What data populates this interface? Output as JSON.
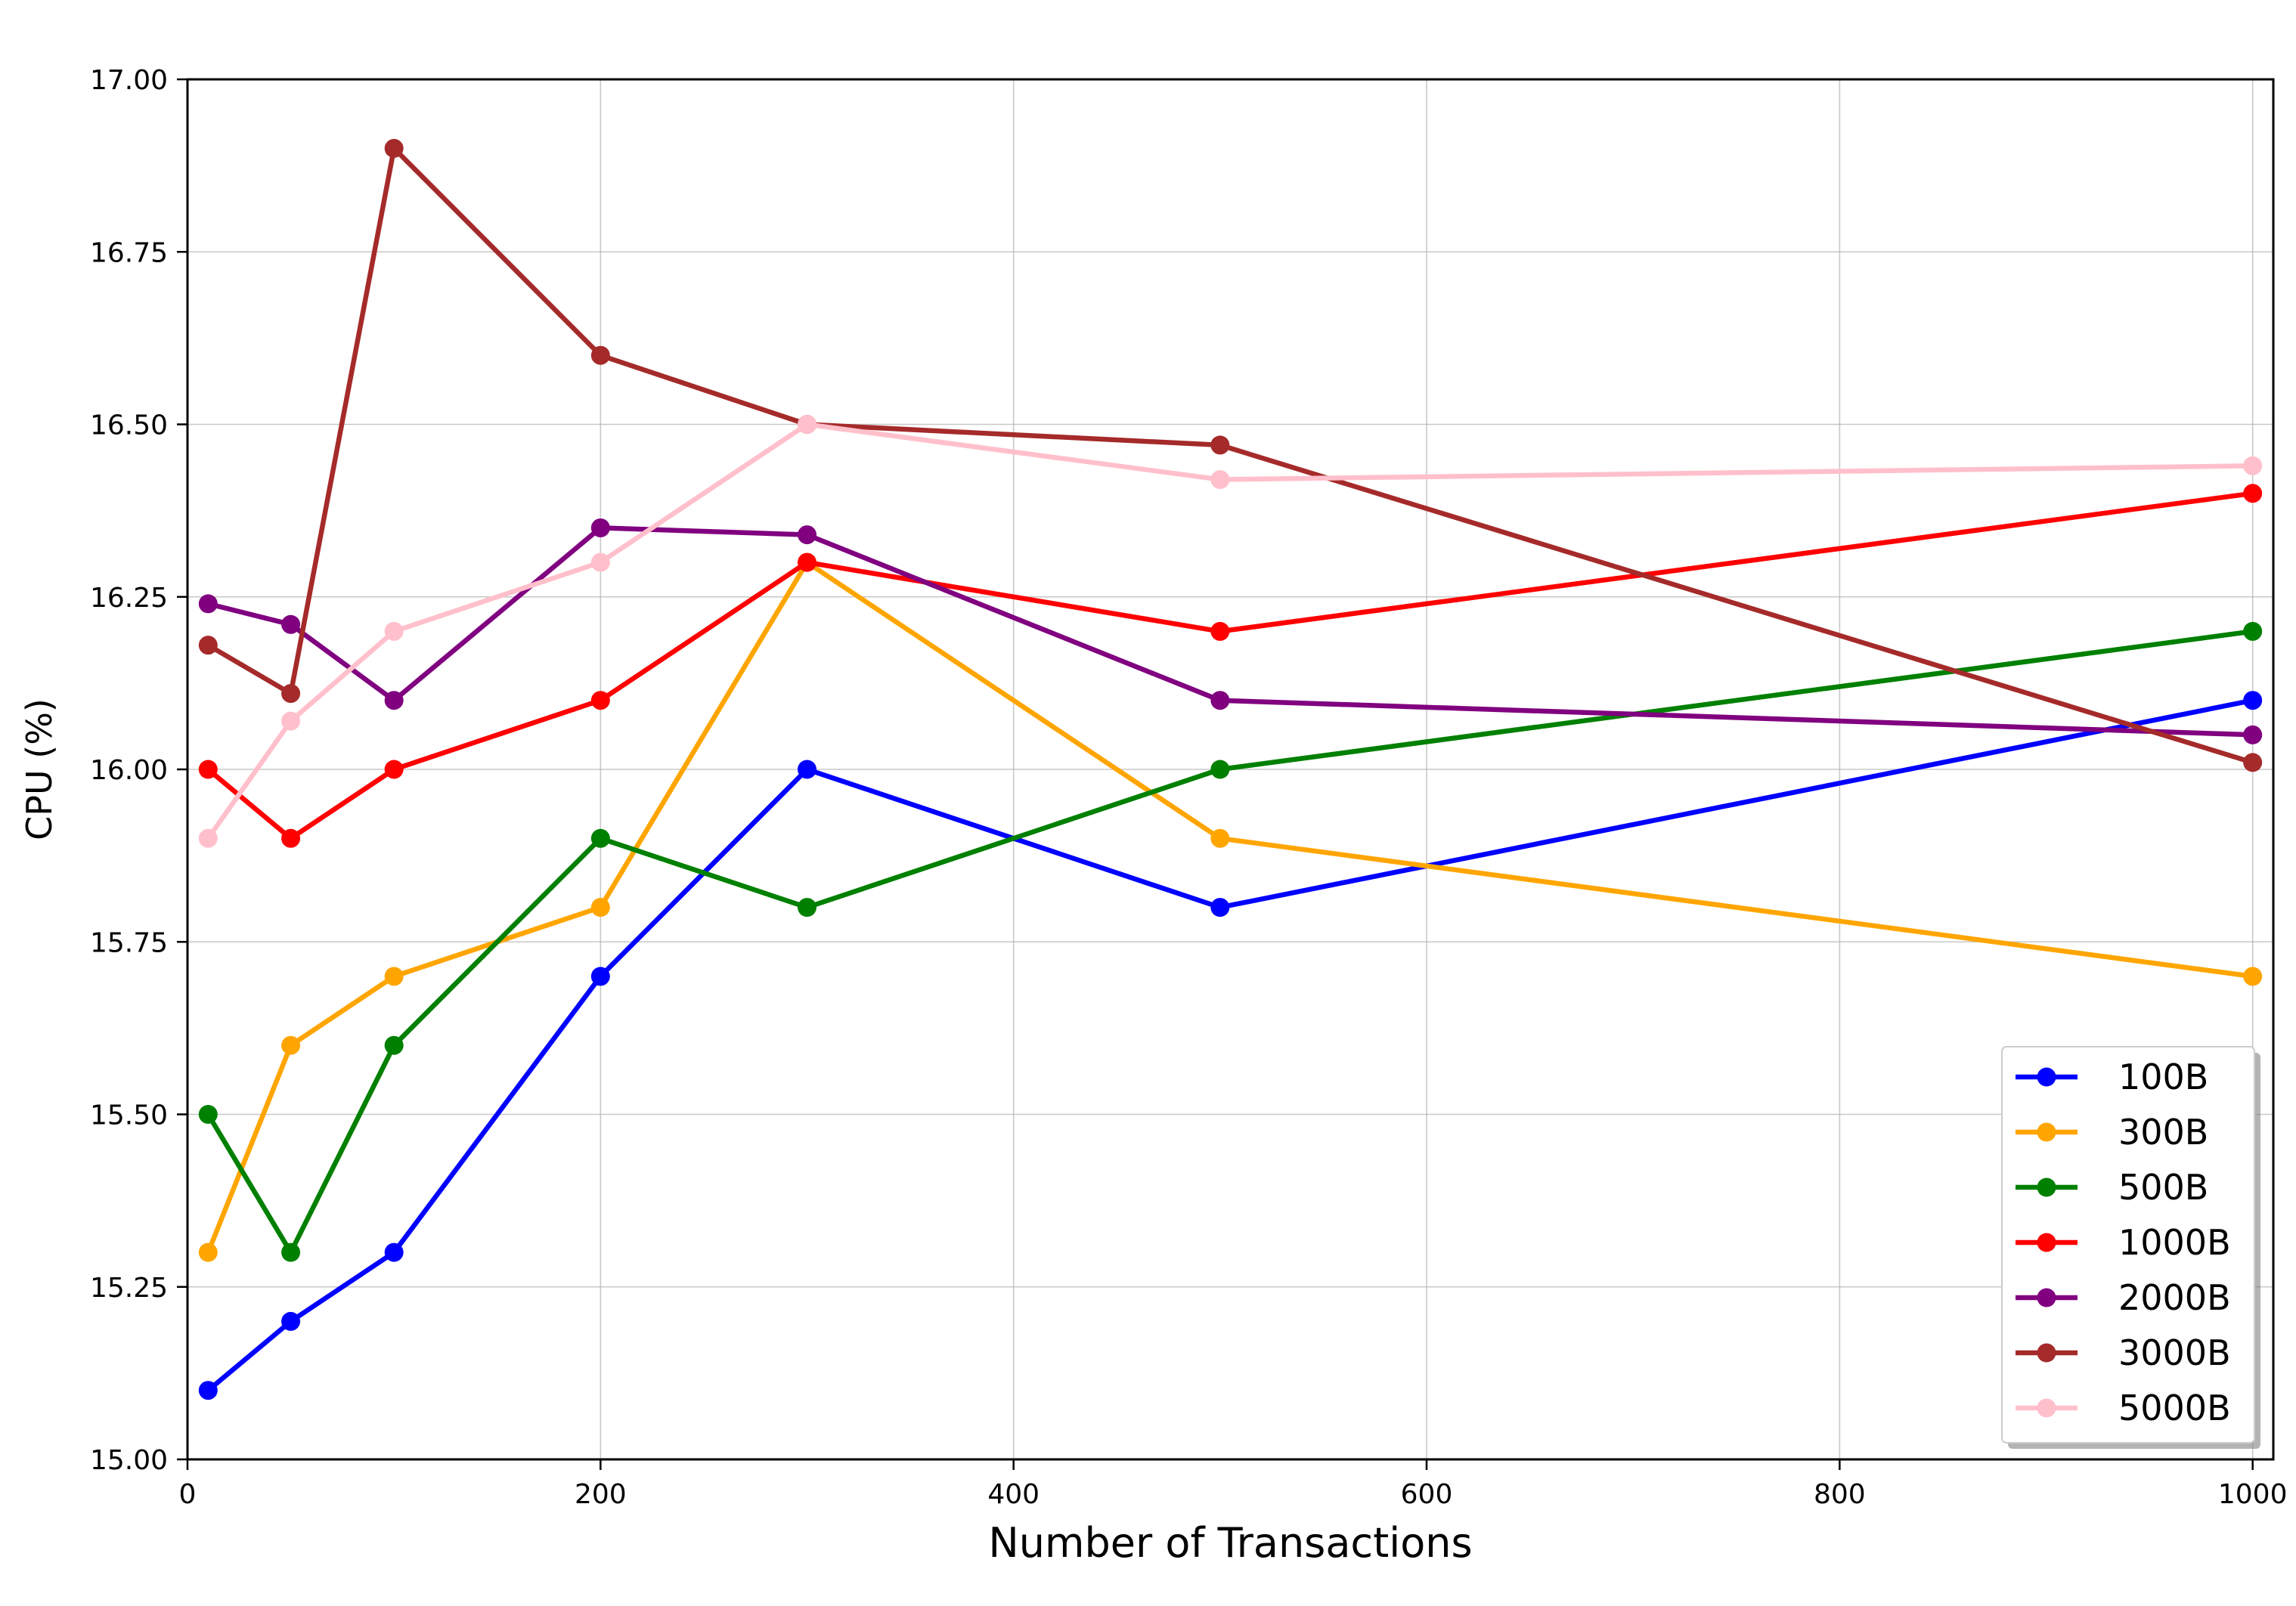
{
  "chart_data": {
    "type": "line",
    "title": "",
    "xlabel": "Number of Transactions",
    "ylabel": "CPU (%)",
    "xlim": [
      0,
      1010
    ],
    "ylim": [
      15.0,
      17.0
    ],
    "xticks": [
      0,
      200,
      400,
      600,
      800,
      1000
    ],
    "yticks": [
      15.0,
      15.25,
      15.5,
      15.75,
      16.0,
      16.25,
      16.5,
      16.75,
      17.0
    ],
    "xtick_labels": [
      "0",
      "200",
      "400",
      "600",
      "800",
      "1000"
    ],
    "ytick_labels": [
      "15.00",
      "15.25",
      "15.50",
      "15.75",
      "16.00",
      "16.25",
      "16.50",
      "16.75",
      "17.00"
    ],
    "grid": true,
    "legend_position": "lower-right",
    "x": [
      10,
      50,
      100,
      200,
      300,
      500,
      1000
    ],
    "series": [
      {
        "name": "100B",
        "color": "#0000ff",
        "values": [
          15.1,
          15.2,
          15.3,
          15.7,
          16.0,
          15.8,
          16.1
        ]
      },
      {
        "name": "300B",
        "color": "#ffa500",
        "values": [
          15.3,
          15.6,
          15.7,
          15.8,
          16.3,
          15.9,
          15.7
        ]
      },
      {
        "name": "500B",
        "color": "#008000",
        "values": [
          15.5,
          15.3,
          15.6,
          15.9,
          15.8,
          16.0,
          16.2
        ]
      },
      {
        "name": "1000B",
        "color": "#ff0000",
        "values": [
          16.0,
          15.9,
          16.0,
          16.1,
          16.3,
          16.2,
          16.4
        ]
      },
      {
        "name": "2000B",
        "color": "#800080",
        "values": [
          16.24,
          16.21,
          16.1,
          16.35,
          16.34,
          16.1,
          16.05
        ]
      },
      {
        "name": "3000B",
        "color": "#a52a2a",
        "values": [
          16.18,
          16.11,
          16.9,
          16.6,
          16.5,
          16.47,
          16.01
        ]
      },
      {
        "name": "5000B",
        "color": "#ffc0cb",
        "values": [
          15.9,
          16.07,
          16.2,
          16.3,
          16.5,
          16.42,
          16.44
        ]
      }
    ]
  }
}
